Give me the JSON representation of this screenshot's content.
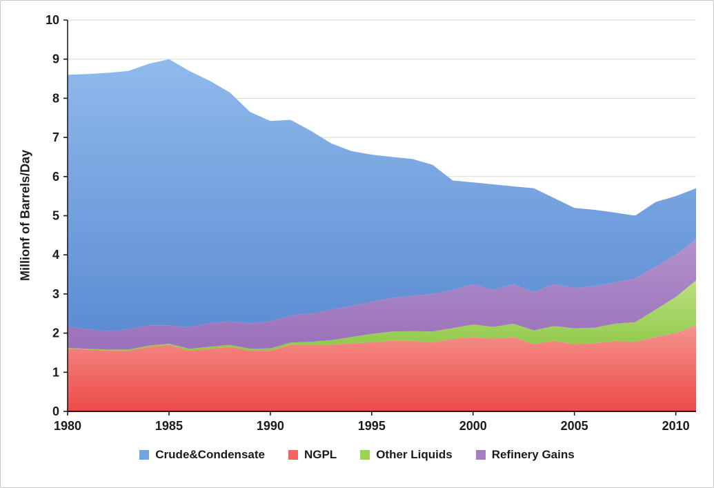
{
  "chart_data": {
    "type": "area",
    "stacked": true,
    "title": "",
    "xlabel": "",
    "ylabel": "Millionf of Barrels/Day",
    "ylim": [
      0,
      10
    ],
    "grid": true,
    "legend_position": "bottom",
    "yticks": [
      0,
      1,
      2,
      3,
      4,
      5,
      6,
      7,
      8,
      9,
      10
    ],
    "xticks": [
      1980,
      1985,
      1990,
      1995,
      2000,
      2005,
      2010
    ],
    "x": [
      1980,
      1981,
      1982,
      1983,
      1984,
      1985,
      1986,
      1987,
      1988,
      1989,
      1990,
      1991,
      1992,
      1993,
      1994,
      1995,
      1996,
      1997,
      1998,
      1999,
      2000,
      2001,
      2002,
      2003,
      2004,
      2005,
      2006,
      2007,
      2008,
      2009,
      2010,
      2011
    ],
    "series": [
      {
        "id": "ngpl",
        "name": "NGPL",
        "legend_color": "#F2645F",
        "fill_top": "#F6928C",
        "fill_bottom": "#EC4B49",
        "values": [
          1.6,
          1.58,
          1.55,
          1.55,
          1.65,
          1.7,
          1.55,
          1.6,
          1.65,
          1.55,
          1.55,
          1.7,
          1.7,
          1.7,
          1.74,
          1.76,
          1.8,
          1.8,
          1.76,
          1.85,
          1.9,
          1.86,
          1.9,
          1.72,
          1.8,
          1.72,
          1.74,
          1.8,
          1.78,
          1.9,
          2.0,
          2.2
        ]
      },
      {
        "id": "other-liquids",
        "name": "Other Liquids",
        "legend_color": "#9BD355",
        "fill_top": "#BCDF7E",
        "fill_bottom": "#8FC84A",
        "values": [
          0.02,
          0.02,
          0.03,
          0.03,
          0.03,
          0.03,
          0.05,
          0.05,
          0.05,
          0.05,
          0.06,
          0.06,
          0.08,
          0.12,
          0.16,
          0.22,
          0.24,
          0.25,
          0.28,
          0.28,
          0.32,
          0.3,
          0.34,
          0.35,
          0.38,
          0.4,
          0.4,
          0.44,
          0.5,
          0.7,
          0.92,
          1.15
        ]
      },
      {
        "id": "refinery-gains",
        "name": "Refinery Gains",
        "legend_color": "#A47FC2",
        "fill_top": "#B292CC",
        "fill_bottom": "#9A70BA",
        "values": [
          0.55,
          0.5,
          0.47,
          0.52,
          0.52,
          0.47,
          0.55,
          0.6,
          0.6,
          0.65,
          0.69,
          0.69,
          0.72,
          0.78,
          0.8,
          0.82,
          0.86,
          0.9,
          0.96,
          0.97,
          1.03,
          0.94,
          1.01,
          0.98,
          1.07,
          1.03,
          1.06,
          1.06,
          1.12,
          1.1,
          1.08,
          1.05
        ]
      },
      {
        "id": "crude-condensate",
        "name": "Crude&Condensate",
        "legend_color": "#72A3E2",
        "fill_top": "#8FBAEC",
        "fill_bottom": "#5D8CD3",
        "values": [
          6.43,
          6.52,
          6.6,
          6.6,
          6.68,
          6.8,
          6.55,
          6.2,
          5.85,
          5.4,
          5.12,
          5.0,
          4.67,
          4.25,
          3.95,
          3.76,
          3.6,
          3.5,
          3.3,
          2.8,
          2.6,
          2.7,
          2.5,
          2.65,
          2.2,
          2.05,
          1.95,
          1.78,
          1.6,
          1.65,
          1.5,
          1.3
        ]
      }
    ]
  }
}
